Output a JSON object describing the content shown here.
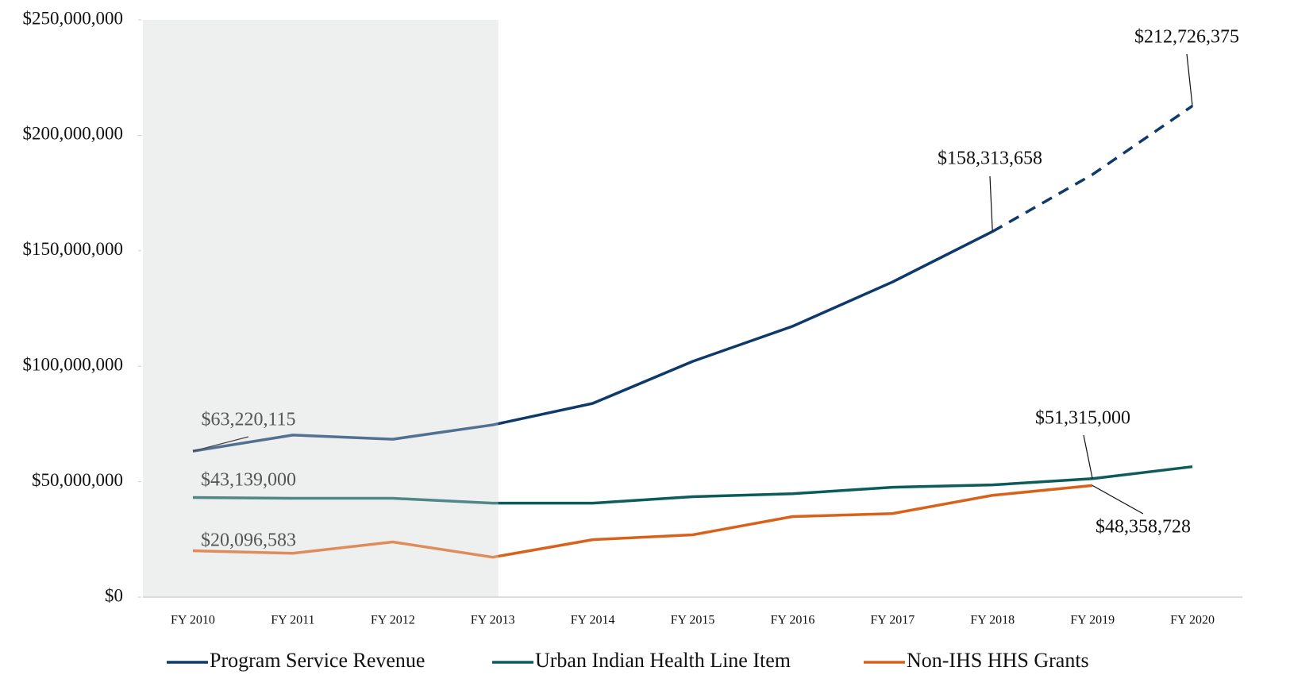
{
  "chart_data": {
    "type": "line",
    "categories": [
      "FY 2010",
      "FY 2011",
      "FY 2012",
      "FY 2013",
      "FY 2014",
      "FY 2015",
      "FY 2016",
      "FY 2017",
      "FY 2018",
      "FY 2019",
      "FY 2020"
    ],
    "series": [
      {
        "name": "Program Service Revenue",
        "color": "#0d3a6b",
        "dashed_from": "FY 2018",
        "values": [
          63220115,
          70200000,
          68400000,
          74600000,
          83900000,
          102100000,
          117300000,
          136500000,
          158313658,
          183000000,
          212726375
        ],
        "value_labels": [
          "$63,220,115",
          null,
          null,
          null,
          null,
          null,
          null,
          null,
          "$158,313,658",
          null,
          "$212,726,375"
        ]
      },
      {
        "name": "Urban Indian Health Line Item",
        "color": "#0b5c5a",
        "values": [
          43139000,
          42800000,
          42800000,
          40700000,
          40700000,
          43500000,
          44800000,
          47600000,
          48600000,
          51315000,
          56500000
        ],
        "value_labels": [
          "$43,139,000",
          null,
          null,
          null,
          null,
          null,
          null,
          null,
          null,
          "$51,315,000",
          null
        ]
      },
      {
        "name": "Non-IHS HHS Grants",
        "color": "#d9621a",
        "values": [
          20096583,
          19000000,
          23900000,
          17300000,
          24900000,
          27000000,
          34900000,
          36200000,
          44100000,
          48358728,
          null
        ],
        "value_labels": [
          "$20,096,583",
          null,
          null,
          null,
          null,
          null,
          null,
          null,
          null,
          "$48,358,728",
          null
        ]
      }
    ],
    "ylim": [
      0,
      250000000
    ],
    "yticks": [
      {
        "value": 0,
        "label": "$0"
      },
      {
        "value": 50000000,
        "label": "$50,000,000"
      },
      {
        "value": 100000000,
        "label": "$100,000,000"
      },
      {
        "value": 150000000,
        "label": "$150,000,000"
      },
      {
        "value": 200000000,
        "label": "$200,000,000"
      },
      {
        "value": 250000000,
        "label": "$250,000,000"
      }
    ],
    "grid": false,
    "legend": "bottom"
  }
}
